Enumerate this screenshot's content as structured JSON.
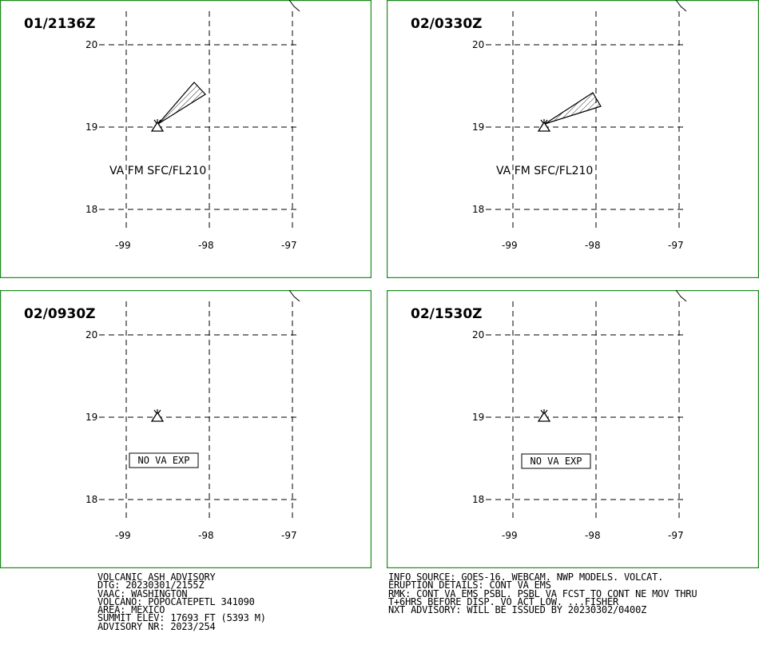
{
  "panels": [
    {
      "title": "01/2136Z",
      "label": "VA FM SFC/FL210",
      "plume": true,
      "box": ""
    },
    {
      "title": "02/0330Z",
      "label": "VA FM SFC/FL210",
      "plume": true,
      "box": ""
    },
    {
      "title": "02/0930Z",
      "label": "",
      "plume": false,
      "box": "NO VA EXP"
    },
    {
      "title": "02/1530Z",
      "label": "",
      "plume": false,
      "box": "NO VA EXP"
    }
  ],
  "grid": {
    "lat_labels": [
      "20",
      "19",
      "18"
    ],
    "lon_labels": [
      "-99",
      "-98",
      "-97"
    ]
  },
  "advisory_left": [
    "VOLCANIC ASH ADVISORY",
    "DTG: 20230301/2155Z",
    "VAAC: WASHINGTON",
    "VOLCANO: POPOCATEPETL 341090",
    "AREA: MEXICO",
    "SUMMIT ELEV: 17693 FT (5393 M)",
    "ADVISORY NR: 2023/254"
  ],
  "advisory_right": [
    "INFO SOURCE: GOES-16. WEBCAM. NWP MODELS. VOLCAT.",
    "ERUPTION DETAILS: CONT VA EMS",
    "RMK: CONT VA EMS PSBL. PSBL VA FCST TO CONT NE MOV THRU",
    "T+6HRS BEFORE DISP. VO ACT LOW. ...FISHER",
    "NXT ADVISORY: WILL BE ISSUED BY 20230302/0400Z"
  ]
}
